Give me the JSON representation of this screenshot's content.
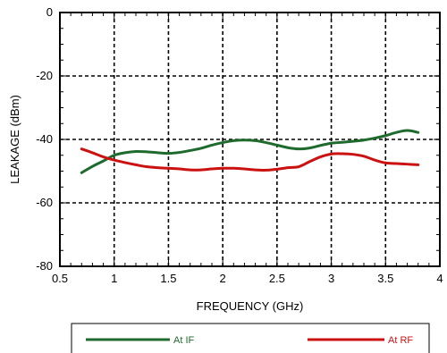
{
  "chart_data": {
    "type": "line",
    "title": "",
    "xlabel": "FREQUENCY (GHz)",
    "ylabel": "LEAKAGE (dBm)",
    "xlim": [
      0.5,
      4
    ],
    "ylim": [
      -80,
      0
    ],
    "xticks": [
      0.5,
      1,
      1.5,
      2,
      2.5,
      3,
      3.5,
      4
    ],
    "xtick_labels": [
      "0.5",
      "1",
      "1.5",
      "2",
      "2.5",
      "3",
      "3.5",
      "4"
    ],
    "yticks": [
      -80,
      -60,
      -40,
      -20,
      0
    ],
    "ytick_labels": [
      "-80",
      "-60",
      "-40",
      "-20",
      "0"
    ],
    "grid": true,
    "grid_style": "dashed",
    "legend_position": "bottom",
    "series": [
      {
        "name": "At IF",
        "color": "#1f6b2e",
        "x": [
          0.7,
          0.8,
          0.9,
          1.0,
          1.1,
          1.2,
          1.3,
          1.4,
          1.5,
          1.6,
          1.7,
          1.8,
          1.9,
          2.0,
          2.1,
          2.2,
          2.3,
          2.4,
          2.5,
          2.6,
          2.7,
          2.8,
          2.9,
          3.0,
          3.1,
          3.2,
          3.3,
          3.4,
          3.5,
          3.6,
          3.7,
          3.8
        ],
        "y": [
          -50.5,
          -48.5,
          -46.8,
          -45.0,
          -44.2,
          -43.8,
          -43.9,
          -44.2,
          -44.4,
          -44.1,
          -43.5,
          -42.8,
          -41.8,
          -41.0,
          -40.4,
          -40.2,
          -40.4,
          -41.0,
          -41.8,
          -42.6,
          -43.0,
          -42.7,
          -41.9,
          -41.2,
          -40.9,
          -40.6,
          -40.2,
          -39.6,
          -38.8,
          -37.8,
          -37.2,
          -37.8
        ]
      },
      {
        "name": "At RF",
        "color": "#cc1111",
        "x": [
          0.7,
          0.8,
          0.9,
          1.0,
          1.1,
          1.2,
          1.3,
          1.4,
          1.5,
          1.6,
          1.7,
          1.8,
          1.9,
          2.0,
          2.1,
          2.2,
          2.3,
          2.4,
          2.5,
          2.6,
          2.7,
          2.8,
          2.9,
          3.0,
          3.1,
          3.2,
          3.3,
          3.4,
          3.5,
          3.6,
          3.7,
          3.8
        ],
        "y": [
          -43.0,
          -44.2,
          -45.5,
          -46.5,
          -47.3,
          -48.0,
          -48.6,
          -48.9,
          -49.1,
          -49.3,
          -49.6,
          -49.6,
          -49.3,
          -49.1,
          -49.1,
          -49.3,
          -49.6,
          -49.7,
          -49.4,
          -48.9,
          -48.6,
          -47.0,
          -45.5,
          -44.6,
          -44.5,
          -44.7,
          -45.3,
          -46.5,
          -47.4,
          -47.6,
          -47.8,
          -48.0
        ]
      }
    ]
  }
}
